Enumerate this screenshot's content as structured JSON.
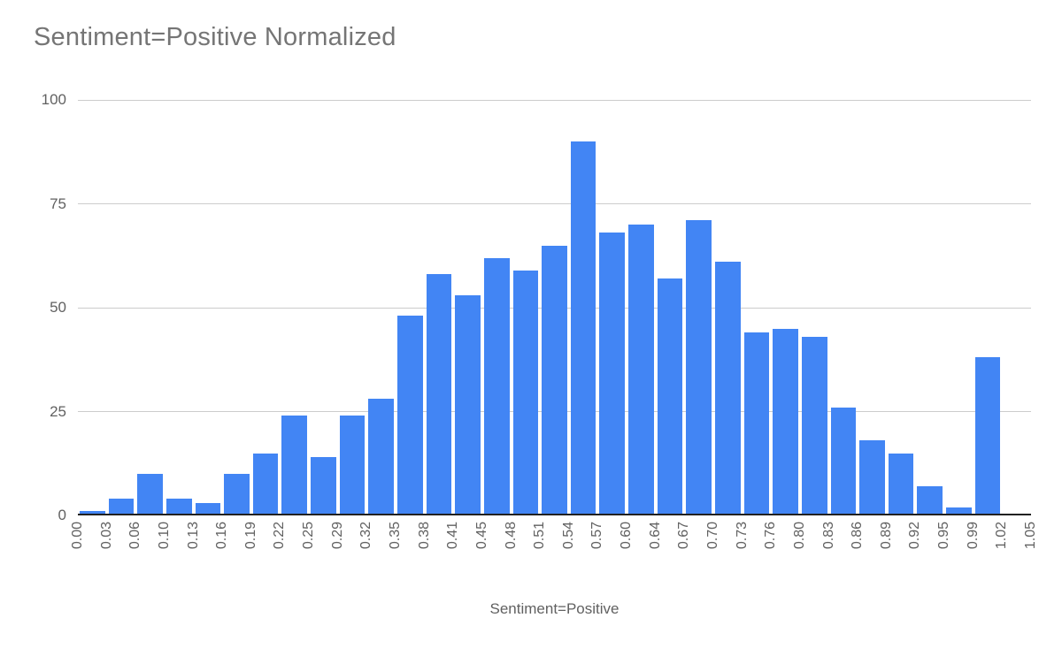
{
  "chart_data": {
    "type": "bar",
    "subtype": "histogram",
    "title": "Sentiment=Positive Normalized",
    "xlabel": "Sentiment=Positive",
    "ylabel": "",
    "bin_edges": [
      "0.00",
      "0.03",
      "0.06",
      "0.10",
      "0.13",
      "0.16",
      "0.19",
      "0.22",
      "0.25",
      "0.29",
      "0.32",
      "0.35",
      "0.38",
      "0.41",
      "0.45",
      "0.48",
      "0.51",
      "0.54",
      "0.57",
      "0.60",
      "0.64",
      "0.67",
      "0.70",
      "0.73",
      "0.76",
      "0.80",
      "0.83",
      "0.86",
      "0.89",
      "0.92",
      "0.95",
      "0.99",
      "1.02",
      "1.05"
    ],
    "values": [
      1,
      4,
      10,
      4,
      3,
      10,
      15,
      24,
      14,
      24,
      28,
      48,
      58,
      53,
      62,
      59,
      65,
      90,
      68,
      70,
      57,
      71,
      61,
      44,
      45,
      43,
      26,
      18,
      15,
      7,
      2,
      38,
      0
    ],
    "y_ticks": [
      0,
      25,
      50,
      75,
      100
    ],
    "ylim": [
      0,
      100
    ],
    "grid": true,
    "legend": "none",
    "colors": {
      "bar": "#4285f4",
      "grid": "#cccccc",
      "axis_line": "#212121",
      "title": "#757575",
      "tick": "#616161",
      "xlabel": "#616161"
    }
  }
}
